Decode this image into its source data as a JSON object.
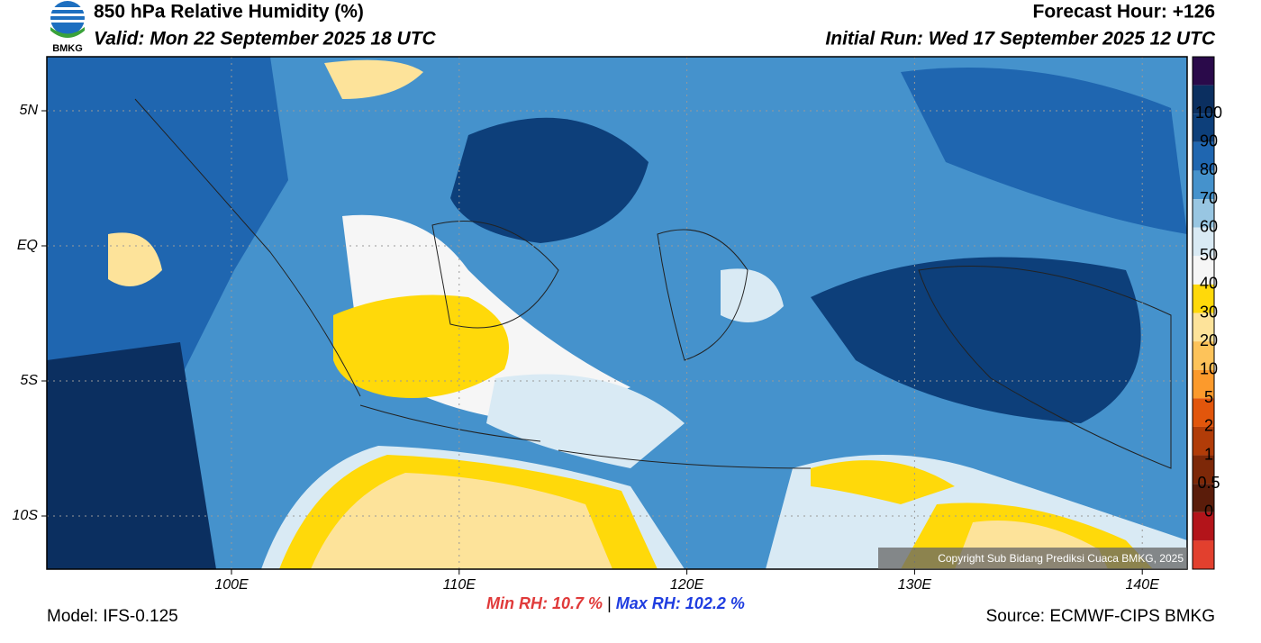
{
  "header": {
    "title": "850 hPa Relative Humidity (%)",
    "valid": "Valid: Mon 22 September 2025 18 UTC",
    "forecast_hour": "Forecast Hour: +126",
    "initial_run": "Initial Run: Wed 17 September 2025 12 UTC",
    "logo_text": "BMKG"
  },
  "map": {
    "lat_labels": [
      "5N",
      "EQ",
      "5S",
      "10S"
    ],
    "lon_labels": [
      "100E",
      "110E",
      "120E",
      "130E",
      "140E"
    ],
    "copyright": "Copyright Sub Bidang Prediksi Cuaca BMKG, 2025"
  },
  "colorbar": {
    "labels": [
      "100",
      "90",
      "80",
      "70",
      "60",
      "50",
      "40",
      "30",
      "20",
      "10",
      "5",
      "2",
      "1",
      "0.5",
      "0"
    ],
    "colors": [
      "#2a0a4a",
      "#0b2f60",
      "#0d3f7a",
      "#1f66b0",
      "#4592cc",
      "#98c6e2",
      "#d9eaf4",
      "#f6f6f6",
      "#ffd90a",
      "#fde39a",
      "#fdc35a",
      "#fc9a2c",
      "#e2560c",
      "#b13c08",
      "#7d2808",
      "#5a1c0a",
      "#b3141a",
      "#e2402e"
    ]
  },
  "footer": {
    "model": "Model: IFS-0.125",
    "min_rh_label": "Min RH:",
    "min_rh": "10.7 %",
    "separator": "|",
    "max_rh_label": "Max RH:",
    "max_rh": "102.2 %",
    "source": "Source: ECMWF-CIPS BMKG"
  }
}
